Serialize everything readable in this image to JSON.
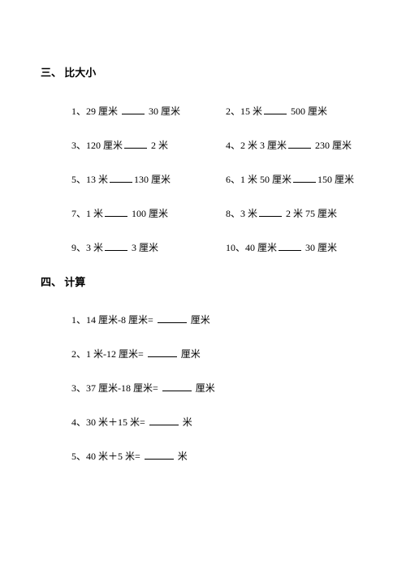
{
  "section3": {
    "title": "三、 比大小",
    "items": [
      {
        "n": "1",
        "left": "29 厘米",
        "right": "30 厘米"
      },
      {
        "n": "2",
        "left": "15 米",
        "right": "500 厘米"
      },
      {
        "n": "3",
        "left": "120 厘米",
        "right": "2 米"
      },
      {
        "n": "4",
        "left": "2 米 3 厘米",
        "right": "230 厘米"
      },
      {
        "n": "5",
        "left": "13 米",
        "right": "130 厘米"
      },
      {
        "n": "6",
        "left": "1 米 50 厘米",
        "right": "150 厘米"
      },
      {
        "n": "7",
        "left": "1 米",
        "right": "100 厘米"
      },
      {
        "n": "8",
        "left": "3 米",
        "right": "2 米 75 厘米"
      },
      {
        "n": "9",
        "left": "3 米",
        "right": "3 厘米"
      },
      {
        "n": "10",
        "left": "40 厘米",
        "right": "30 厘米"
      }
    ]
  },
  "section4": {
    "title": "四、 计算",
    "items": [
      {
        "n": "1",
        "expr": "14 厘米-8 厘米=",
        "unit": "厘米"
      },
      {
        "n": "2",
        "expr": "1 米-12 厘米=",
        "unit": "厘米"
      },
      {
        "n": "3",
        "expr": "37 厘米-18 厘米=",
        "unit": "厘米"
      },
      {
        "n": "4",
        "expr": "30 米＋15 米=",
        "unit": "米"
      },
      {
        "n": "5",
        "expr": "40 米＋5 米=",
        "unit": "米"
      }
    ]
  }
}
